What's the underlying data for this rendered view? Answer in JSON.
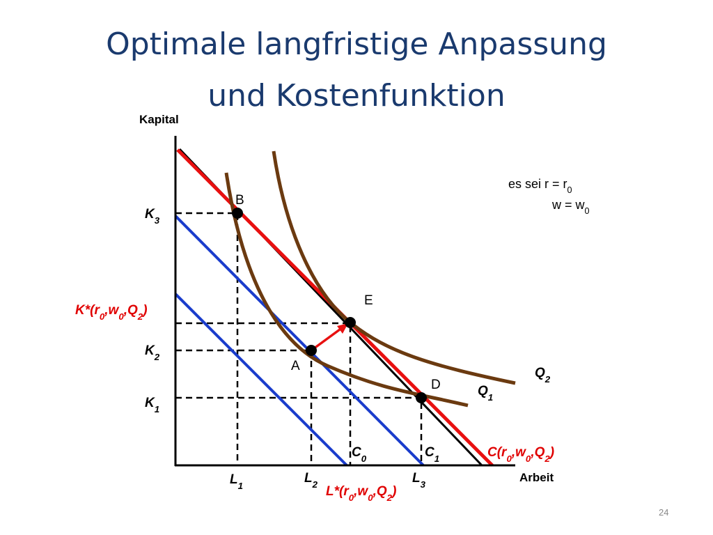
{
  "title": [
    "Optimale langfristige Anpassung",
    "und Kostenfunktion"
  ],
  "axes": {
    "y": "Kapital",
    "x": "Arbeit"
  },
  "points": {
    "b": "B",
    "e": "E",
    "a": "A",
    "d": "D"
  },
  "labels": {
    "k3": [
      "K",
      {
        "sub": "3"
      }
    ],
    "k_star": [
      "K*(r",
      {
        "sub": "0"
      },
      ",w",
      {
        "sub": "0"
      },
      ",Q",
      {
        "sub": "2"
      },
      ")"
    ],
    "k2": [
      "K",
      {
        "sub": "2"
      }
    ],
    "k1": [
      "K",
      {
        "sub": "1"
      }
    ],
    "l1": [
      "L",
      {
        "sub": "1"
      }
    ],
    "l2": [
      "L",
      {
        "sub": "2"
      }
    ],
    "l3": [
      "L",
      {
        "sub": "3"
      }
    ],
    "l_star": [
      "L*(r",
      {
        "sub": "0"
      },
      ",w",
      {
        "sub": "0"
      },
      ",Q",
      {
        "sub": "2"
      },
      ")"
    ],
    "c0": [
      "C",
      {
        "sub": "0"
      }
    ],
    "c1": [
      "C",
      {
        "sub": "1"
      }
    ],
    "c_star": [
      "C(r",
      {
        "sub": "0"
      },
      ",w",
      {
        "sub": "0"
      },
      ",Q",
      {
        "sub": "2"
      },
      ")"
    ],
    "q2": [
      "Q",
      {
        "sub": "2"
      }
    ],
    "q1": [
      "Q",
      {
        "sub": "1"
      }
    ]
  },
  "note": [
    [
      "es sei r = r",
      {
        "sub": "0"
      }
    ],
    [
      "w = w",
      {
        "sub": "0"
      }
    ]
  ],
  "page_number": "24"
}
